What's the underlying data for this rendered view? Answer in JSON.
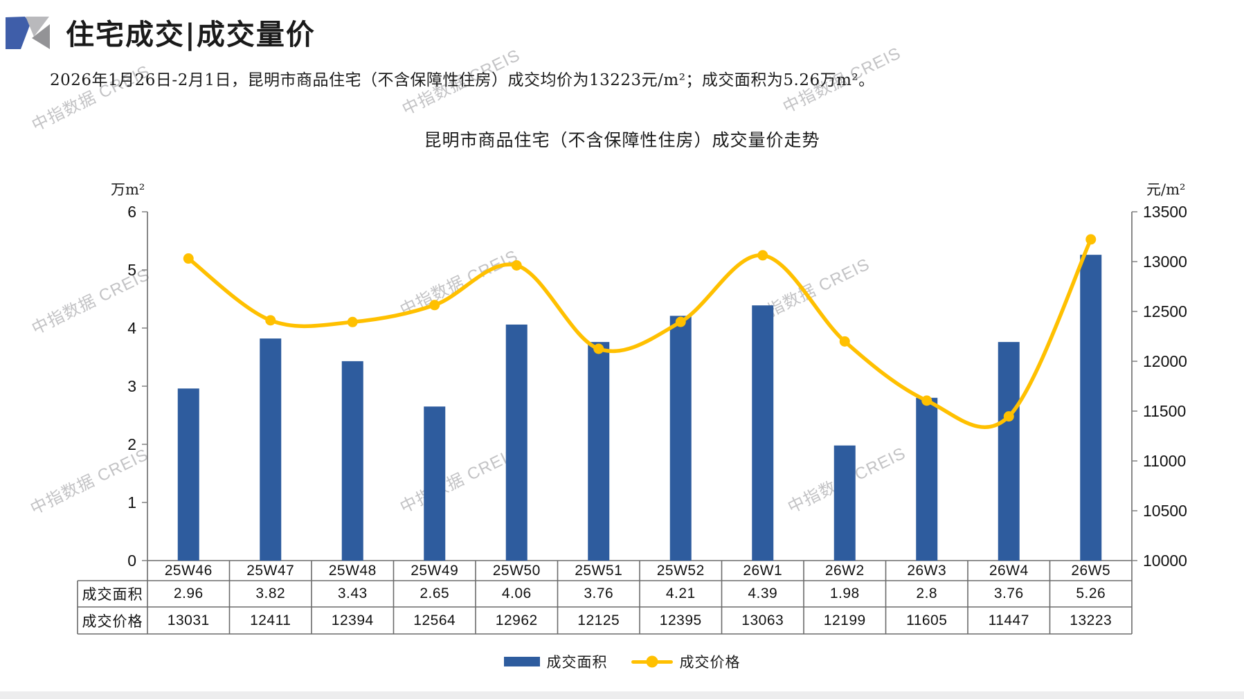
{
  "page": {
    "background": "#ffffff"
  },
  "header": {
    "title": "住宅成交|成交量价",
    "subtitle": "2026年1月26日-2月1日，昆明市商品住宅（不含保障性住房）成交均价为13223元/m²；成交面积为5.26万m²。"
  },
  "watermark": {
    "text": "中指数据 CREIS"
  },
  "chart_data": {
    "type": "bar+line combo",
    "title": "昆明市商品住宅（不含保障性住房）成交量价走势",
    "categories": [
      "25W46",
      "25W47",
      "25W48",
      "25W49",
      "25W50",
      "25W51",
      "25W52",
      "26W1",
      "26W2",
      "26W3",
      "26W4",
      "26W5"
    ],
    "series": [
      {
        "name": "成交面积",
        "type": "bar",
        "axis": "left",
        "unit": "万m²",
        "color": "#2E5C9E",
        "values": [
          2.96,
          3.82,
          3.43,
          2.65,
          4.06,
          3.76,
          4.21,
          4.39,
          1.98,
          2.8,
          3.76,
          5.26
        ]
      },
      {
        "name": "成交价格",
        "type": "line",
        "axis": "right",
        "unit": "元/m²",
        "color": "#FFC000",
        "values": [
          13031,
          12411,
          12394,
          12564,
          12962,
          12125,
          12395,
          13063,
          12199,
          11605,
          11447,
          13223
        ]
      }
    ],
    "left_axis": {
      "label": "万m²",
      "min": 0,
      "max": 6,
      "step": 1
    },
    "right_axis": {
      "label": "元/m²",
      "min": 10000,
      "max": 13500,
      "step": 500
    },
    "grid": false,
    "legend_position": "bottom",
    "table_row_labels": [
      "成交面积",
      "成交价格"
    ]
  }
}
